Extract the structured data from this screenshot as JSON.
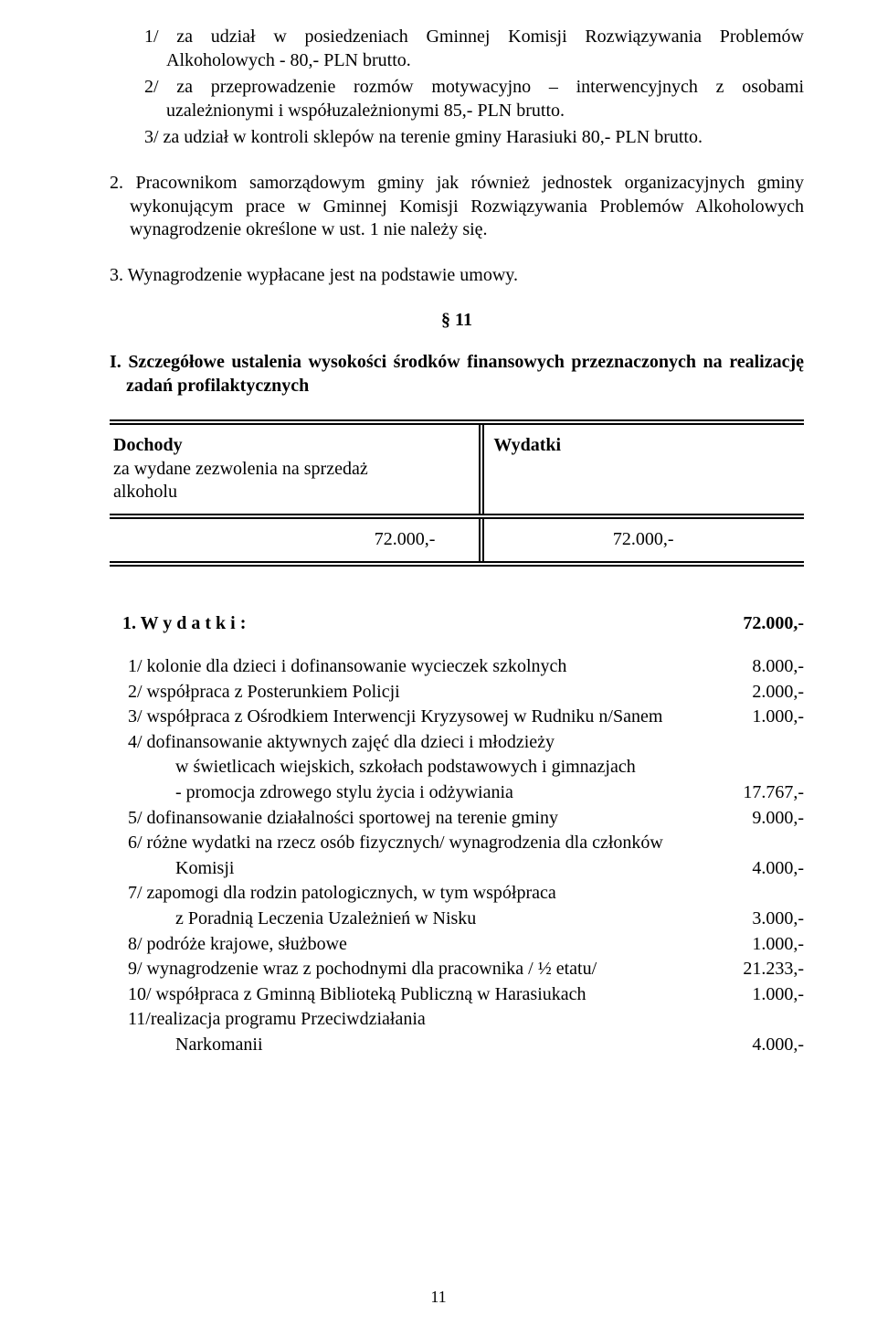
{
  "intro": {
    "item1": "1/ za udział w posiedzeniach Gminnej Komisji Rozwiązywania Problemów Alkoholowych - 80,- PLN brutto.",
    "item2": "2/ za przeprowadzenie rozmów motywacyjno – interwencyjnych z osobami uzależnionymi i współuzależnionymi 85,- PLN brutto.",
    "item3": "3/ za udział w kontroli sklepów na terenie gminy Harasiuki 80,- PLN brutto.",
    "para2": "2. Pracownikom samorządowym gminy jak również jednostek organizacyjnych gminy wykonującym prace w Gminnej Komisji Rozwiązywania Problemów Alkoholowych wynagrodzenie określone w ust. 1 nie należy się.",
    "para3": "3. Wynagrodzenie wypłacane jest na podstawie umowy."
  },
  "section_marker": "§ 11",
  "headline": "I. Szczegółowe ustalenia wysokości środków finansowych przeznaczonych na realizację zadań profilaktycznych",
  "table": {
    "left_head_bold": "Dochody",
    "left_head_line2": "za wydane zezwolenia na sprzedaż",
    "left_head_line3": "alkoholu",
    "right_head_bold": "Wydatki",
    "left_value": "72.000,-",
    "right_value": "72.000,-"
  },
  "expenditures": {
    "title": "1. W y d a t k i :",
    "total": "72.000,-",
    "rows": [
      {
        "label": "1/ kolonie dla dzieci i dofinansowanie wycieczek szkolnych",
        "amount": "8.000,-"
      },
      {
        "label": "2/ współpraca z Posterunkiem Policji",
        "amount": "2.000,-"
      },
      {
        "label": "3/ współpraca z Ośrodkiem Interwencji Kryzysowej w Rudniku n/Sanem",
        "amount": "1.000,-"
      },
      {
        "label": "4/ dofinansowanie aktywnych zajęć dla dzieci i młodzieży",
        "amount": ""
      }
    ],
    "row4_sub1": "w świetlicach wiejskich, szkołach podstawowych i gimnazjach",
    "row4_sub2": "- promocja zdrowego stylu życia i odżywiania",
    "row4_amount": "17.767,-",
    "rows2": [
      {
        "label": "5/ dofinansowanie działalności sportowej na terenie gminy",
        "amount": "9.000,-"
      },
      {
        "label": "6/ różne wydatki na rzecz osób fizycznych/ wynagrodzenia dla członków",
        "amount": ""
      }
    ],
    "row6_sub": "Komisji",
    "row6_amount": "4.000,-",
    "rows3": [
      {
        "label": "7/ zapomogi dla rodzin patologicznych, w tym współpraca",
        "amount": ""
      }
    ],
    "row7_sub": "z Poradnią Leczenia Uzależnień w Nisku",
    "row7_amount": "3.000,-",
    "rows4": [
      {
        "label": "8/ podróże krajowe, służbowe",
        "amount": "1.000,-"
      },
      {
        "label": "9/ wynagrodzenie wraz z pochodnymi dla pracownika / ½ etatu/",
        "amount": "21.233,-"
      },
      {
        "label": "10/ współpraca z Gminną Biblioteką Publiczną w Harasiukach",
        "amount": "1.000,-"
      },
      {
        "label": "11/realizacja programu Przeciwdziałania",
        "amount": ""
      }
    ],
    "row11_sub": "Narkomanii",
    "row11_amount": "4.000,-"
  },
  "page_number": "11"
}
